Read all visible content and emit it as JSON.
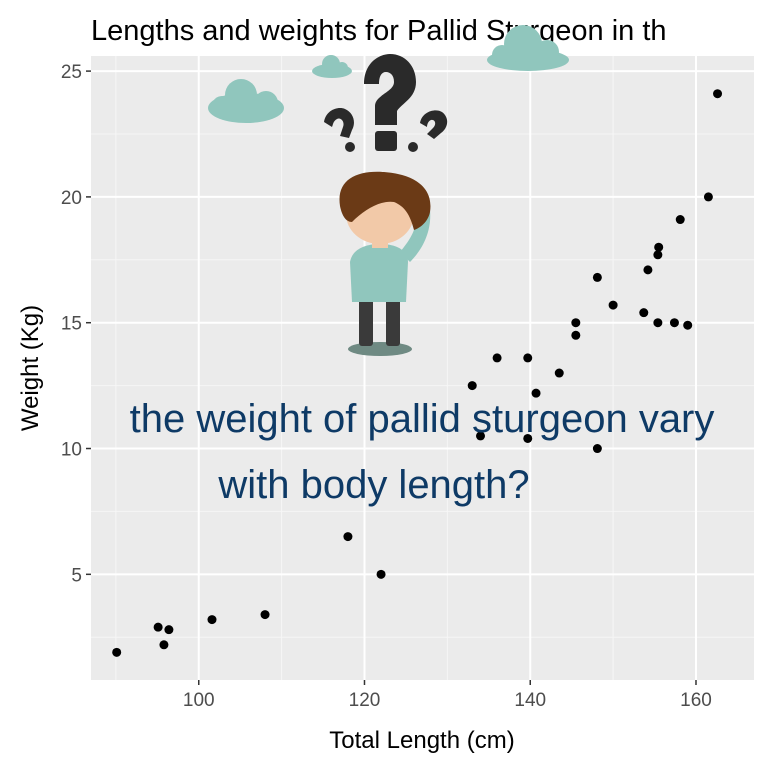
{
  "chart_data": {
    "type": "scatter",
    "title": "Lengths and weights for Pallid Sturgeon in th",
    "xlabel": "Total Length (cm)",
    "ylabel": "Weight (Kg)",
    "xlim": [
      87,
      167
    ],
    "ylim": [
      0.8,
      25.6
    ],
    "xticks": [
      100,
      120,
      140,
      160
    ],
    "yticks": [
      5,
      10,
      15,
      20,
      25
    ],
    "grid": true,
    "point_color": "#000000",
    "panel_color": "#ebebeb",
    "points": [
      {
        "x": 90.1,
        "y": 1.9
      },
      {
        "x": 95.1,
        "y": 2.9
      },
      {
        "x": 95.8,
        "y": 2.2
      },
      {
        "x": 96.4,
        "y": 2.8
      },
      {
        "x": 101.6,
        "y": 3.2
      },
      {
        "x": 108.0,
        "y": 3.4
      },
      {
        "x": 118.0,
        "y": 6.5
      },
      {
        "x": 122.0,
        "y": 5.0
      },
      {
        "x": 133.0,
        "y": 12.5
      },
      {
        "x": 134.0,
        "y": 10.5
      },
      {
        "x": 136.0,
        "y": 13.6
      },
      {
        "x": 139.7,
        "y": 13.6
      },
      {
        "x": 139.7,
        "y": 10.4
      },
      {
        "x": 140.7,
        "y": 12.2
      },
      {
        "x": 143.5,
        "y": 13.0
      },
      {
        "x": 145.5,
        "y": 15.0
      },
      {
        "x": 145.5,
        "y": 14.5
      },
      {
        "x": 148.1,
        "y": 16.8
      },
      {
        "x": 148.1,
        "y": 10.0
      },
      {
        "x": 150.0,
        "y": 15.7
      },
      {
        "x": 153.7,
        "y": 15.4
      },
      {
        "x": 154.2,
        "y": 17.1
      },
      {
        "x": 155.4,
        "y": 17.7
      },
      {
        "x": 155.5,
        "y": 18.0
      },
      {
        "x": 155.4,
        "y": 15.0
      },
      {
        "x": 157.4,
        "y": 15.0
      },
      {
        "x": 158.1,
        "y": 19.1
      },
      {
        "x": 159.0,
        "y": 14.9
      },
      {
        "x": 161.5,
        "y": 20.0
      },
      {
        "x": 162.6,
        "y": 24.1
      }
    ]
  },
  "overlay": {
    "question_line1": "the weight of pallid sturgeon vary",
    "question_line2": "with body length?",
    "question_color": "#0e3a66",
    "illustration_icon": "person-scratching-head-with-question-marks-icon",
    "cloud_color": "#90c6bd"
  }
}
